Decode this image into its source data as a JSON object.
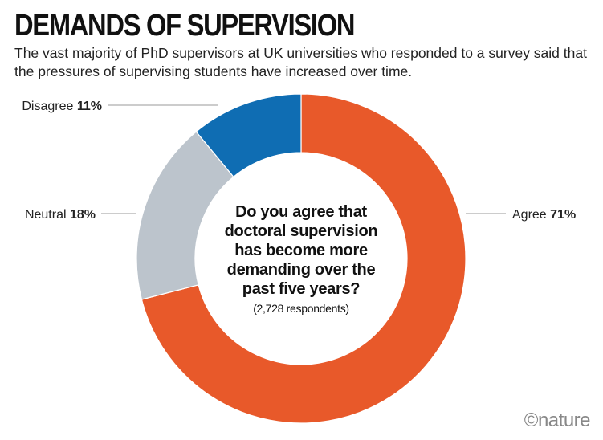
{
  "header": {
    "title": "DEMANDS OF SUPERVISION",
    "subtitle": "The vast majority of PhD supervisors at UK universities who responded to a survey said that the pressures of supervising students have increased over time."
  },
  "chart_data": {
    "type": "pie",
    "variant": "donut",
    "question": "Do you agree that doctoral supervision has become more demanding over the past five years?",
    "respondents_note": "(2,728 respondents)",
    "slices": [
      {
        "label": "Agree",
        "value": 71,
        "display": "71%",
        "color": "#e8592a"
      },
      {
        "label": "Neutral",
        "value": 18,
        "display": "18%",
        "color": "#bcc4cc"
      },
      {
        "label": "Disagree",
        "value": 11,
        "display": "11%",
        "color": "#0f6db3"
      }
    ]
  },
  "footer": {
    "brand": "©nature"
  }
}
